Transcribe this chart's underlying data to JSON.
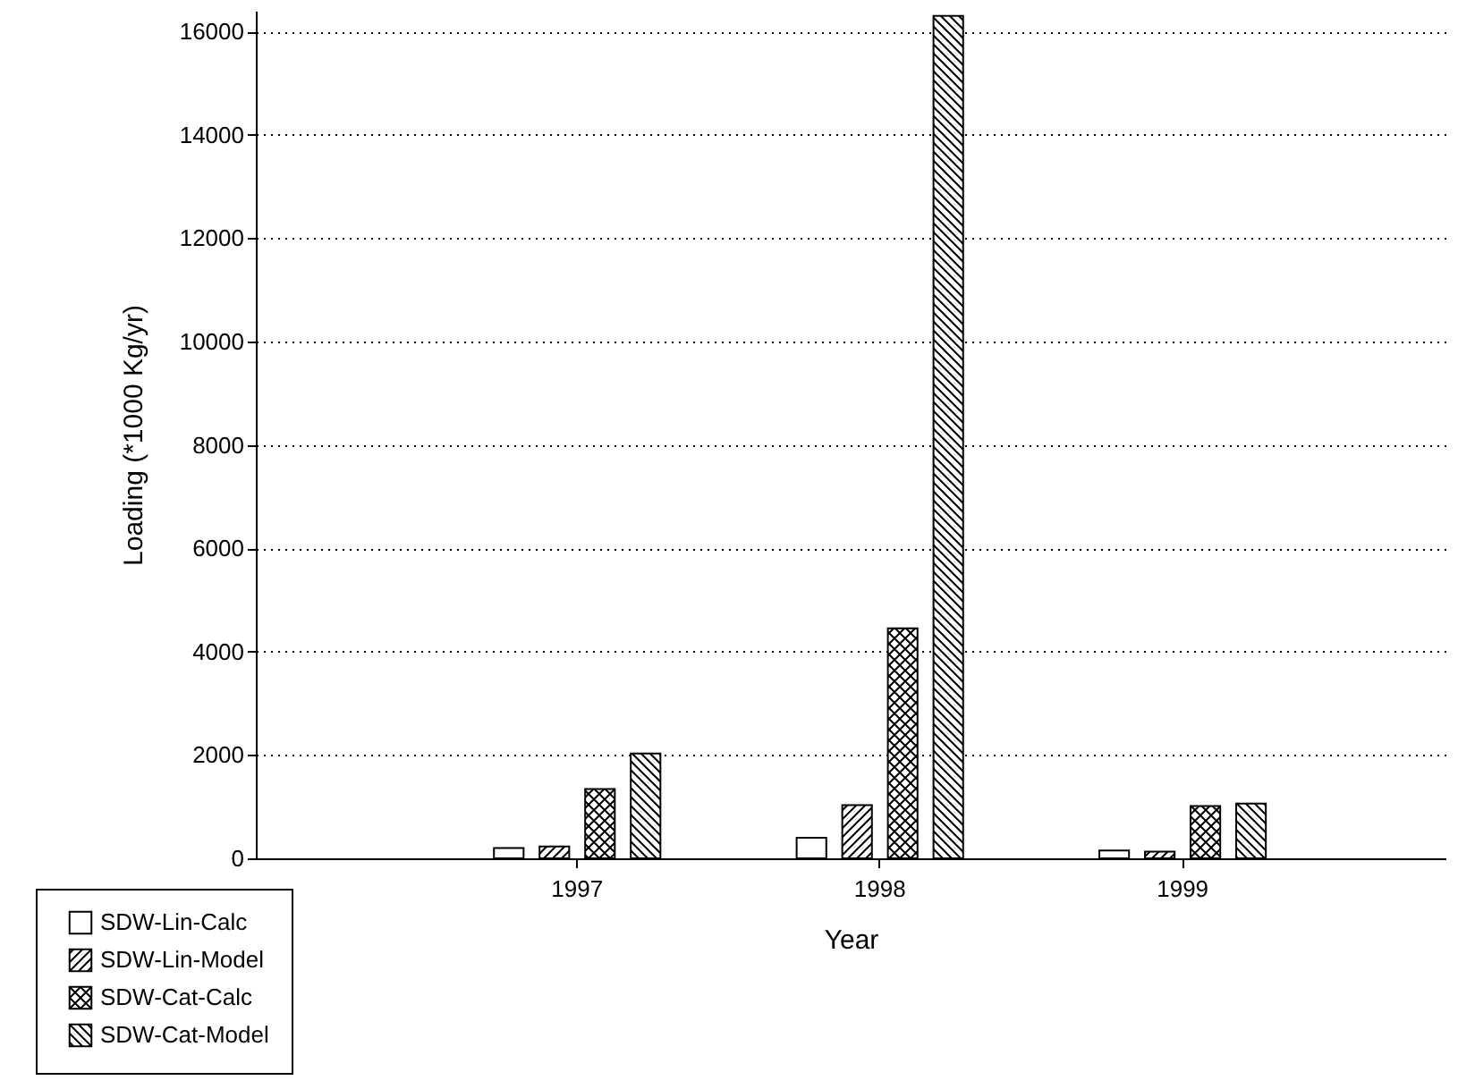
{
  "chart_data": {
    "type": "bar",
    "xlabel": "Year",
    "ylabel": "Loading (*1000 Kg/yr)",
    "categories": [
      "1997",
      "1998",
      "1999"
    ],
    "series": [
      {
        "name": "SDW-Lin-Calc",
        "color": "#000000",
        "values": [
          200,
          400,
          150
        ]
      },
      {
        "name": "SDW-Lin-Model",
        "color": "#000000",
        "values": [
          230,
          1030,
          130
        ]
      },
      {
        "name": "SDW-Cat-Calc",
        "color": "#000000",
        "values": [
          1340,
          4450,
          1010
        ]
      },
      {
        "name": "SDW-Cat-Model",
        "color": "#000000",
        "values": [
          2030,
          16300,
          1060
        ]
      }
    ],
    "ylim": [
      0,
      16400
    ],
    "yticks": [
      0,
      2000,
      4000,
      6000,
      8000,
      10000,
      12000,
      14000,
      16000
    ],
    "grid": "y",
    "legend": "bottom left"
  }
}
